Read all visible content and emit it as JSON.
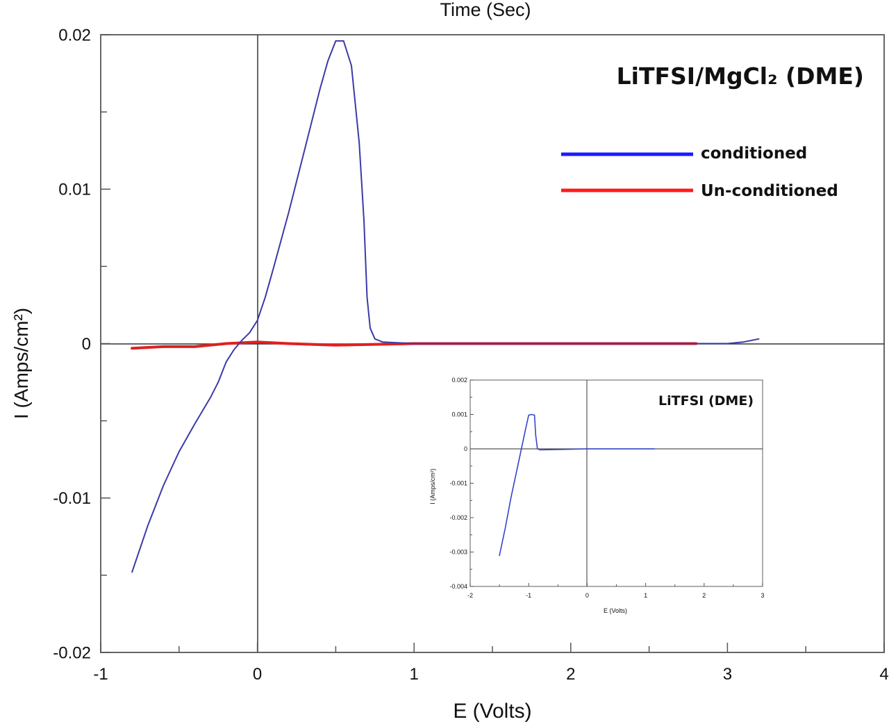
{
  "chart_data": [
    {
      "id": "main",
      "type": "line",
      "title": "LiTFSI/MgCl₂ (DME)",
      "top_label": "Time (Sec)",
      "xlabel": "E (Volts)",
      "ylabel": "I (Amps/cm²)",
      "xlim": [
        -1,
        4
      ],
      "ylim": [
        -0.02,
        0.02
      ],
      "xticks": [
        -1,
        0,
        1,
        2,
        3,
        4
      ],
      "xtick_labels": [
        "-1",
        "0",
        "1",
        "2",
        "3",
        "4"
      ],
      "yticks": [
        0.02,
        0.01,
        0,
        -0.01,
        -0.02
      ],
      "ytick_labels": [
        "0.02",
        "0.01",
        "0",
        "-0.01",
        "-0.02"
      ],
      "grid": false,
      "crosshair_at_origin": true,
      "legend": {
        "position": "upper right",
        "entries": [
          {
            "label": "conditioned",
            "color": "#1a1aff"
          },
          {
            "label": "Un-conditioned",
            "color": "#ff1a1a"
          }
        ]
      },
      "series": [
        {
          "name": "conditioned",
          "color": "#3a3aa8",
          "x": [
            -0.8,
            -0.7,
            -0.6,
            -0.5,
            -0.4,
            -0.3,
            -0.25,
            -0.2,
            -0.15,
            -0.1,
            -0.05,
            0.0,
            0.05,
            0.1,
            0.2,
            0.3,
            0.4,
            0.45,
            0.5,
            0.55,
            0.6,
            0.65,
            0.68,
            0.7,
            0.72,
            0.75,
            0.8,
            1.0,
            1.5,
            2.0,
            2.5,
            3.0,
            3.1,
            3.2
          ],
          "y": [
            -0.0148,
            -0.0118,
            -0.0092,
            -0.007,
            -0.0052,
            -0.0035,
            -0.0025,
            -0.0012,
            -0.0004,
            0.0002,
            0.0007,
            0.0015,
            0.003,
            0.0048,
            0.0085,
            0.0125,
            0.0165,
            0.0183,
            0.0196,
            0.0196,
            0.018,
            0.013,
            0.008,
            0.003,
            0.001,
            0.0003,
            0.0001,
            0.0,
            0.0,
            0.0,
            0.0,
            0.0,
            0.0001,
            0.0003
          ]
        },
        {
          "name": "Un-conditioned",
          "color": "#e02020",
          "x": [
            -0.8,
            -0.6,
            -0.4,
            -0.2,
            0.0,
            0.2,
            0.5,
            1.0,
            1.5,
            2.0,
            2.5,
            2.8
          ],
          "y": [
            -0.0003,
            -0.0002,
            -0.0002,
            0.0,
            0.0001,
            0.0,
            -0.0001,
            0.0,
            0.0,
            0.0,
            0.0,
            0.0
          ]
        }
      ]
    },
    {
      "id": "inset",
      "type": "line",
      "title": "LiTFSI (DME)",
      "xlabel": "E (Volts)",
      "ylabel": "I (Amps/cm²)",
      "xlim": [
        -2,
        3
      ],
      "ylim": [
        -0.004,
        0.002
      ],
      "xticks": [
        -2,
        -1,
        0,
        1,
        2,
        3
      ],
      "xtick_labels": [
        "-2",
        "-1",
        "0",
        "1",
        "2",
        "3"
      ],
      "yticks": [
        0.002,
        0.001,
        0,
        -0.001,
        -0.002,
        -0.003,
        -0.004
      ],
      "ytick_labels": [
        "0.002",
        "0.001",
        "0",
        "-0.001",
        "-0.002",
        "-0.003",
        "-0.004"
      ],
      "grid": false,
      "crosshair_at_origin": true,
      "series": [
        {
          "name": "LiTFSI (DME)",
          "color": "#3344cc",
          "x": [
            -1.5,
            -1.4,
            -1.3,
            -1.2,
            -1.15,
            -1.1,
            -1.05,
            -1.0,
            -0.95,
            -0.9,
            -0.88,
            -0.85,
            -0.8,
            -0.5,
            0.0,
            0.5,
            1.0,
            1.15
          ],
          "y": [
            -0.0031,
            -0.0023,
            -0.0014,
            -0.0006,
            -0.0002,
            0.0002,
            0.0006,
            0.00098,
            0.001,
            0.00098,
            0.0004,
            0.0,
            -3e-05,
            -2e-05,
            0.0,
            0.0,
            0.0,
            0.0
          ]
        }
      ]
    }
  ]
}
